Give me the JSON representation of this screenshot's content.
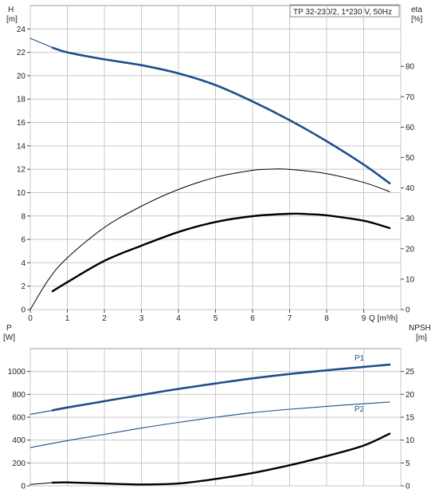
{
  "chart_data": [
    {
      "type": "line",
      "title": "TP 32-230/2, 1*230 V, 50Hz",
      "x_axis": {
        "label": "Q [m³/h]",
        "range": [
          0,
          10
        ],
        "ticks": [
          "0",
          "1",
          "2",
          "3",
          "4",
          "5",
          "6",
          "7",
          "8",
          "9"
        ]
      },
      "y_left": {
        "label_line1": "H",
        "label_line2": "[m]",
        "range": [
          0,
          26
        ],
        "ticks": [
          "0",
          "2",
          "4",
          "6",
          "8",
          "10",
          "12",
          "14",
          "16",
          "18",
          "20",
          "22",
          "24"
        ]
      },
      "y_right": {
        "label_line1": "eta",
        "label_line2": "[%]",
        "range": [
          0,
          100
        ],
        "ticks": [
          "0",
          "10",
          "20",
          "30",
          "40",
          "50",
          "60",
          "70",
          "80"
        ]
      },
      "grid": true,
      "series": [
        {
          "key": "H_ext",
          "axis": "left",
          "style": "thin-blue",
          "x": [
            0,
            0.3,
            0.6
          ],
          "y": [
            23.2,
            22.8,
            22.4
          ]
        },
        {
          "key": "H",
          "axis": "left",
          "style": "thick-blue",
          "x": [
            0.6,
            1,
            2,
            3,
            4,
            5,
            6,
            7,
            8,
            9,
            9.7
          ],
          "y": [
            22.4,
            22.0,
            21.4,
            20.9,
            20.2,
            19.2,
            17.8,
            16.2,
            14.4,
            12.4,
            10.8
          ]
        },
        {
          "key": "eta_thin",
          "axis": "right",
          "style": "thin-black",
          "x": [
            0,
            0.5,
            1,
            2,
            3,
            4,
            5,
            6,
            6.5,
            7,
            8,
            9,
            9.7
          ],
          "y": [
            0,
            10,
            17,
            27,
            34,
            39.5,
            43.5,
            45.8,
            46.2,
            46.1,
            44.7,
            41.8,
            38.8
          ]
        },
        {
          "key": "eta_thick",
          "axis": "right",
          "style": "thick-black",
          "x": [
            0.6,
            1,
            2,
            3,
            4,
            5,
            6,
            7,
            7.5,
            8,
            9,
            9.7
          ],
          "y": [
            6,
            9,
            16,
            21,
            25.5,
            28.8,
            30.7,
            31.5,
            31.4,
            31.0,
            29.2,
            26.8
          ]
        }
      ]
    },
    {
      "type": "line",
      "x_axis": {
        "range": [
          0,
          10
        ]
      },
      "y_left": {
        "label_line1": "P",
        "label_line2": "[W]",
        "range": [
          0,
          1200
        ],
        "ticks": [
          "0",
          "200",
          "400",
          "600",
          "800",
          "1000"
        ]
      },
      "y_right": {
        "label_line1": "NPSH",
        "label_line2": "[m]",
        "range": [
          0,
          30
        ],
        "ticks": [
          "0",
          "5",
          "10",
          "15",
          "20",
          "25"
        ]
      },
      "grid": true,
      "series": [
        {
          "key": "P1_ext",
          "axis": "left",
          "style": "thin-blue",
          "x": [
            0,
            0.6
          ],
          "y": [
            625,
            660
          ]
        },
        {
          "key": "P1",
          "name": "P1",
          "axis": "left",
          "style": "thick-blue",
          "x": [
            0.6,
            1,
            2,
            3,
            4,
            5,
            6,
            7,
            8,
            9,
            9.7
          ],
          "y": [
            660,
            685,
            740,
            795,
            848,
            895,
            940,
            978,
            1010,
            1040,
            1060
          ]
        },
        {
          "key": "P2",
          "name": "P2",
          "axis": "left",
          "style": "thin-blue",
          "x": [
            0,
            1,
            2,
            3,
            4,
            5,
            6,
            7,
            8,
            9,
            9.7
          ],
          "y": [
            335,
            395,
            450,
            505,
            555,
            600,
            640,
            670,
            695,
            718,
            733
          ]
        },
        {
          "key": "NPSH_ext",
          "axis": "right",
          "style": "thin-black",
          "x": [
            0,
            0.6
          ],
          "y": [
            0.3,
            0.7
          ]
        },
        {
          "key": "NPSH",
          "axis": "right",
          "style": "thick-black",
          "x": [
            0.6,
            1,
            2,
            3,
            4,
            5,
            6,
            7,
            8,
            9,
            9.7
          ],
          "y": [
            0.7,
            0.75,
            0.5,
            0.3,
            0.5,
            1.5,
            2.8,
            4.5,
            6.5,
            8.8,
            11.4
          ]
        }
      ]
    }
  ]
}
